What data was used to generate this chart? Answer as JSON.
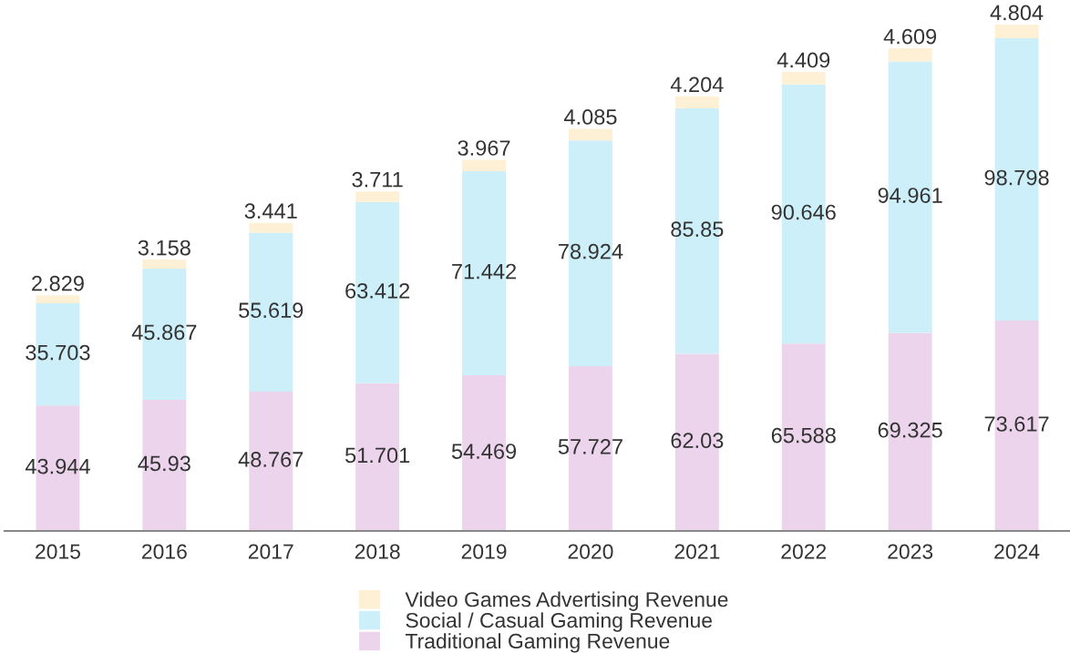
{
  "chart_data": {
    "type": "bar",
    "stacked": true,
    "categories": [
      "2015",
      "2016",
      "2017",
      "2018",
      "2019",
      "2020",
      "2021",
      "2022",
      "2023",
      "2024"
    ],
    "series": [
      {
        "name": "Traditional Gaming Revenue",
        "color": "#ecd5ec",
        "values": [
          43.944,
          45.93,
          48.767,
          51.701,
          54.469,
          57.727,
          62.03,
          65.588,
          69.325,
          73.617
        ]
      },
      {
        "name": "Social / Casual Gaming Revenue",
        "color": "#cdeffa",
        "values": [
          35.703,
          45.867,
          55.619,
          63.412,
          71.442,
          78.924,
          85.85,
          90.646,
          94.961,
          98.798
        ]
      },
      {
        "name": "Video Games Advertising Revenue",
        "color": "#fdf0d5",
        "values": [
          2.829,
          3.158,
          3.441,
          3.711,
          3.967,
          4.085,
          4.204,
          4.409,
          4.609,
          4.804
        ]
      }
    ],
    "data_labels": true,
    "legend": "bottom",
    "tick_labels": "x"
  }
}
